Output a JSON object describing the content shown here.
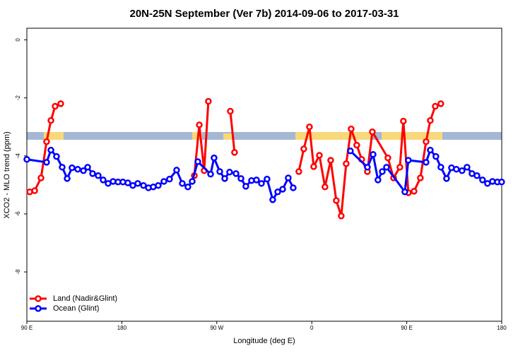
{
  "chart_data": {
    "type": "line",
    "title": "20N-25N September (Ver 7b)   2014-09-06 to 2017-03-31",
    "xlabel": "Longitude (deg E)",
    "ylabel": "XCO2 - MLO trend (ppm)",
    "xlim": [
      90,
      540
    ],
    "ylim": [
      -9.7,
      0.4
    ],
    "xticks": [
      {
        "value": 90,
        "label": "90 E"
      },
      180,
      {
        "value": 270,
        "label": "90 W"
      },
      {
        "value": 360,
        "label": "0"
      },
      {
        "value": 450,
        "label": "90 E"
      },
      {
        "value": 540,
        "label": "180"
      }
    ],
    "yticks": [
      0,
      -2,
      -4,
      -6,
      -8
    ],
    "legend": "bottom-left",
    "series": [
      {
        "name": "Land (Nadir&Glint)",
        "color": "#ff0000",
        "x": [
          92.7,
          97.4,
          103.4,
          108.7,
          112.8,
          116.8,
          122.1,
          null,
          248.7,
          253.4,
          258,
          262,
          null,
          282.8,
          286.8,
          null,
          347.7,
          352.4,
          357.8,
          361.8,
          367.2,
          372.5,
          377.9,
          383.2,
          387.9,
          392.6,
          397.3,
          402.6,
          407.3,
          412.7,
          417.4,
          432.1,
          437.5,
          443.5,
          446.8,
          451.5,
          456.9,
          462.9,
          468.3,
          472.3,
          477,
          482.3
        ],
        "values": [
          -5.24,
          -5.2,
          -4.76,
          -3.51,
          -2.78,
          -2.29,
          -2.2,
          null,
          -4.68,
          -2.93,
          -4.51,
          -2.12,
          null,
          -2.46,
          -3.88,
          null,
          -4.54,
          -3.76,
          -3.0,
          -4.37,
          -3.98,
          -5.07,
          -4.15,
          -5.54,
          -6.07,
          -4.27,
          -3.07,
          -3.63,
          -4.12,
          -4.54,
          -3.17,
          -4.07,
          -4.76,
          -4.39,
          -2.8,
          -5.27,
          -5.22,
          -4.76,
          -3.51,
          -2.78,
          -2.29,
          -2.2
        ]
      },
      {
        "name": "Ocean (Glint)",
        "color": "#0000ff",
        "x": [
          90,
          108.7,
          112.8,
          118.1,
          123.5,
          128.2,
          132.8,
          138.2,
          143.6,
          147.6,
          152.3,
          157.6,
          162.3,
          167,
          171.7,
          176.4,
          181,
          185.7,
          190.4,
          195.1,
          200.5,
          205.2,
          209.8,
          214.5,
          219.9,
          225.2,
          231.9,
          237.3,
          242.6,
          246.7,
          252,
          264.1,
          267.4,
          272.8,
          277.5,
          282.1,
          288.2,
          292.9,
          297.5,
          302.9,
          307.6,
          312.3,
          317.6,
          323,
          327.7,
          332.4,
          337.7,
          342.4,
          null,
          396.6,
          412.7,
          418.1,
          422.7,
          426.8,
          430.8,
          448.2,
          451.5,
          468.3,
          472.3,
          477.6,
          482.3,
          487.7,
          492.4,
          497,
          502.4,
          507.1,
          511.8,
          516.5,
          521.8,
          526.5,
          531.2,
          535.9,
          539.9
        ],
        "values": [
          -4.12,
          -4.22,
          -3.8,
          -4.02,
          -4.39,
          -4.78,
          -4.41,
          -4.46,
          -4.51,
          -4.39,
          -4.61,
          -4.68,
          -4.83,
          -4.95,
          -4.88,
          -4.9,
          -4.9,
          -4.93,
          -5.02,
          -4.95,
          -5.02,
          -5.1,
          -5.07,
          -5.02,
          -4.88,
          -4.8,
          -4.49,
          -4.95,
          -5.07,
          -4.88,
          -4.2,
          -4.63,
          -4.07,
          -4.54,
          -4.78,
          -4.56,
          -4.61,
          -4.78,
          -5.05,
          -4.85,
          -4.83,
          -4.95,
          -4.8,
          -5.51,
          -5.24,
          -5.15,
          -4.76,
          -5.1,
          null,
          -3.83,
          -4.39,
          -3.95,
          -4.83,
          -4.54,
          -4.39,
          -5.24,
          -4.15,
          -4.22,
          -3.8,
          -4.02,
          -4.39,
          -4.78,
          -4.41,
          -4.46,
          -4.51,
          -4.39,
          -4.61,
          -4.68,
          -4.83,
          -4.95,
          -4.88,
          -4.9,
          -4.9
        ]
      }
    ]
  }
}
